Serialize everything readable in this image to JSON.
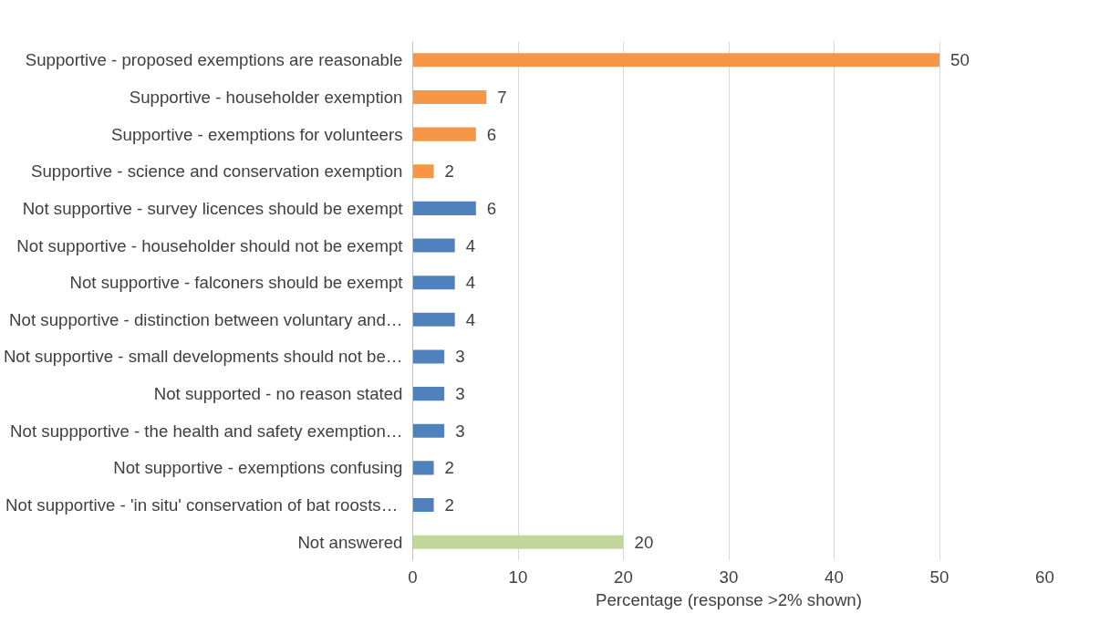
{
  "chart_data": {
    "type": "bar",
    "orientation": "horizontal",
    "xlabel": "Percentage (response >2% shown)",
    "categories": [
      "Supportive - proposed exemptions are reasonable",
      "Supportive - householder exemption",
      "Supportive - exemptions for volunteers",
      "Supportive - science and conservation exemption",
      "Not supportive - survey licences should be exempt",
      "Not supportive - householder should not be exempt",
      "Not supportive - falconers should be exempt",
      "Not supportive - distinction between voluntary and…",
      "Not supportive - small developments should not be…",
      "Not supported - no reason stated",
      "Not suppportive - the health and safety exemption…",
      "Not supportive - exemptions confusing",
      "Not supportive -  'in situ' conservation of bat roosts…",
      "Not answered"
    ],
    "values": [
      50,
      7,
      6,
      2,
      6,
      4,
      4,
      4,
      3,
      3,
      3,
      2,
      2,
      20
    ],
    "colors": [
      "#f79646",
      "#f79646",
      "#f79646",
      "#f79646",
      "#4f81bd",
      "#4f81bd",
      "#4f81bd",
      "#4f81bd",
      "#4f81bd",
      "#4f81bd",
      "#4f81bd",
      "#4f81bd",
      "#4f81bd",
      "#c3d69b"
    ],
    "xlim": [
      0,
      60
    ],
    "xticks": [
      0,
      10,
      20,
      30,
      40,
      50,
      60
    ],
    "grid": "x",
    "data_labels": true
  }
}
